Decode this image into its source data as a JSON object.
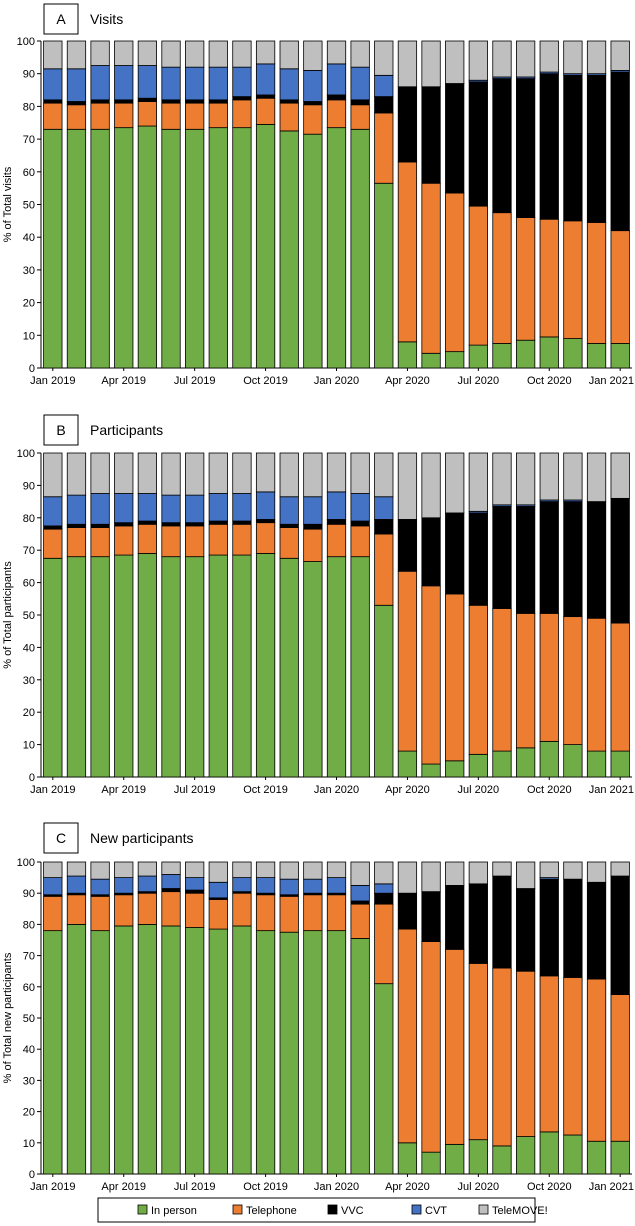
{
  "figure": {
    "series_names": [
      "In person",
      "Telephone",
      "VVC",
      "CVT",
      "TeleMOVE!"
    ],
    "series_colors": [
      "#70AD47",
      "#ED7D31",
      "#000000",
      "#4472C4",
      "#BFBFBF"
    ],
    "legend_position": "bottom-center"
  },
  "chart_data": [
    {
      "type": "bar",
      "stacked": true,
      "panel_letter": "A",
      "title": "Visits",
      "ylabel": "% of Total visits",
      "xlabel": "",
      "ylim": [
        0,
        100
      ],
      "yticks": [
        0,
        10,
        20,
        30,
        40,
        50,
        60,
        70,
        80,
        90,
        100
      ],
      "x_tick_labels": [
        {
          "label": "Jan 2019",
          "index": 0
        },
        {
          "label": "Apr 2019",
          "index": 3
        },
        {
          "label": "Jul 2019",
          "index": 6
        },
        {
          "label": "Oct 2019",
          "index": 9
        },
        {
          "label": "Jan 2020",
          "index": 12
        },
        {
          "label": "Apr 2020",
          "index": 15
        },
        {
          "label": "Jul 2020",
          "index": 18
        },
        {
          "label": "Oct 2020",
          "index": 21
        },
        {
          "label": "Jan 2021",
          "index": 24
        }
      ],
      "series": [
        {
          "name": "In person",
          "values": [
            73,
            73,
            73,
            73.5,
            74,
            73,
            73,
            73.5,
            73.5,
            74.5,
            72.5,
            71.5,
            73.5,
            73,
            56.5,
            8,
            4.5,
            5,
            7,
            7.5,
            8.5,
            9.5,
            9,
            7.5,
            7.5
          ]
        },
        {
          "name": "Telephone",
          "values": [
            8,
            7.5,
            8,
            7.5,
            7.5,
            8,
            8,
            7.5,
            8.5,
            8,
            8.5,
            9,
            8.5,
            7.5,
            21.5,
            55,
            52,
            48.5,
            42.5,
            40,
            37.5,
            36,
            36,
            37,
            34.5
          ]
        },
        {
          "name": "VVC",
          "values": [
            1,
            1,
            1,
            1,
            1,
            1,
            1,
            1,
            1,
            1,
            1,
            1,
            1.5,
            1.5,
            5,
            23,
            29.5,
            33.5,
            38,
            41,
            42.5,
            44.5,
            44.5,
            45,
            48.5
          ]
        },
        {
          "name": "CVT",
          "values": [
            9.5,
            10,
            10.5,
            10.5,
            10,
            10,
            10,
            10,
            9,
            9.5,
            9.5,
            9.5,
            9.5,
            10,
            6.5,
            0,
            0,
            0,
            0.5,
            0.5,
            0.5,
            0.5,
            0.5,
            0.5,
            0.5
          ]
        },
        {
          "name": "TeleMOVE!",
          "values": [
            8.5,
            8.5,
            7.5,
            7.5,
            7.5,
            8,
            8,
            8,
            8,
            7,
            8.5,
            9,
            7,
            8,
            10.5,
            14,
            14,
            13,
            12,
            11,
            11,
            9.5,
            10,
            10,
            9
          ]
        }
      ]
    },
    {
      "type": "bar",
      "stacked": true,
      "panel_letter": "B",
      "title": "Participants",
      "ylabel": "% of Total participants",
      "xlabel": "",
      "ylim": [
        0,
        100
      ],
      "yticks": [
        0,
        10,
        20,
        30,
        40,
        50,
        60,
        70,
        80,
        90,
        100
      ],
      "x_tick_labels": [
        {
          "label": "Jan 2019",
          "index": 0
        },
        {
          "label": "Apr 2019",
          "index": 3
        },
        {
          "label": "Jul 2019",
          "index": 6
        },
        {
          "label": "Oct 2019",
          "index": 9
        },
        {
          "label": "Jan 2020",
          "index": 12
        },
        {
          "label": "Apr 2020",
          "index": 15
        },
        {
          "label": "Jul 2020",
          "index": 18
        },
        {
          "label": "Oct 2020",
          "index": 21
        },
        {
          "label": "Jan 2021",
          "index": 24
        }
      ],
      "series": [
        {
          "name": "In person",
          "values": [
            67.5,
            68,
            68,
            68.5,
            69,
            68,
            68,
            68.5,
            68.5,
            69,
            67.5,
            66.5,
            68,
            68,
            53,
            8,
            4,
            5,
            7,
            8,
            9,
            11,
            10,
            8,
            8
          ]
        },
        {
          "name": "Telephone",
          "values": [
            9,
            9,
            9,
            9,
            9,
            9.5,
            9.5,
            9.5,
            9.5,
            9.5,
            9.5,
            10,
            10,
            9.5,
            22,
            55.5,
            55,
            51.5,
            46,
            44,
            41.5,
            39.5,
            39.5,
            41,
            39.5
          ]
        },
        {
          "name": "VVC",
          "values": [
            1,
            1,
            1,
            1,
            1,
            1,
            1,
            1,
            1,
            1,
            1,
            1.5,
            1.5,
            1.5,
            4.5,
            16,
            21,
            25,
            28.5,
            31.5,
            33,
            34.5,
            35.5,
            36,
            38.5
          ]
        },
        {
          "name": "CVT",
          "values": [
            9,
            9,
            9.5,
            9,
            8.5,
            8.5,
            8.5,
            8.5,
            8.5,
            8.5,
            8.5,
            8.5,
            8.5,
            8.5,
            7,
            0,
            0,
            0,
            0.5,
            0.5,
            0.5,
            0.5,
            0.5,
            0,
            0
          ]
        },
        {
          "name": "TeleMOVE!",
          "values": [
            13.5,
            13,
            12.5,
            12.5,
            12.5,
            13,
            13,
            12.5,
            12.5,
            12,
            13.5,
            13.5,
            12,
            12.5,
            13.5,
            20.5,
            20,
            18.5,
            18,
            16,
            16,
            14.5,
            14.5,
            15,
            14
          ]
        }
      ]
    },
    {
      "type": "bar",
      "stacked": true,
      "panel_letter": "C",
      "title": "New participants",
      "ylabel": "% of Total new participants",
      "xlabel": "",
      "ylim": [
        0,
        100
      ],
      "yticks": [
        0,
        10,
        20,
        30,
        40,
        50,
        60,
        70,
        80,
        90,
        100
      ],
      "x_tick_labels": [
        {
          "label": "Jan 2019",
          "index": 0
        },
        {
          "label": "Apr 2019",
          "index": 3
        },
        {
          "label": "Jul 2019",
          "index": 6
        },
        {
          "label": "Oct 2019",
          "index": 9
        },
        {
          "label": "Jan 2020",
          "index": 12
        },
        {
          "label": "Apr 2020",
          "index": 15
        },
        {
          "label": "Jul 2020",
          "index": 18
        },
        {
          "label": "Oct 2020",
          "index": 21
        },
        {
          "label": "Jan 2021",
          "index": 24
        }
      ],
      "series": [
        {
          "name": "In person",
          "values": [
            78,
            80,
            78,
            79.5,
            80,
            79.5,
            79,
            78.5,
            79.5,
            78,
            77.5,
            78,
            78,
            75.5,
            61,
            10,
            7,
            9.5,
            11,
            9,
            12,
            13.5,
            12.5,
            10.5,
            10.5
          ]
        },
        {
          "name": "Telephone",
          "values": [
            11,
            9.5,
            11,
            10,
            10,
            11,
            11,
            9.5,
            10.5,
            11.5,
            11.5,
            11.5,
            11.5,
            11,
            25.5,
            68.5,
            67.5,
            62.5,
            56.5,
            57,
            53,
            50,
            50.5,
            52,
            47
          ]
        },
        {
          "name": "VVC",
          "values": [
            0.5,
            0.5,
            0.5,
            0.5,
            0.5,
            1,
            1,
            0.5,
            0.5,
            0.5,
            0.5,
            0.5,
            0.5,
            1,
            3.5,
            11.5,
            16,
            20.5,
            25.5,
            29.5,
            26.5,
            31,
            31.5,
            31,
            38
          ]
        },
        {
          "name": "CVT",
          "values": [
            5.5,
            5.5,
            5,
            5,
            5,
            4.5,
            4,
            5,
            4.5,
            5,
            5,
            4.5,
            5,
            5,
            3,
            0,
            0,
            0,
            0,
            0,
            0,
            0.5,
            0,
            0,
            0
          ]
        },
        {
          "name": "TeleMOVE!",
          "values": [
            5,
            4.5,
            5.5,
            5,
            4.5,
            4,
            5,
            6.5,
            5,
            5,
            5.5,
            5.5,
            5,
            7.5,
            7,
            10,
            9.5,
            7.5,
            7,
            4.5,
            8.5,
            5,
            5.5,
            6.5,
            4.5
          ]
        }
      ]
    }
  ]
}
